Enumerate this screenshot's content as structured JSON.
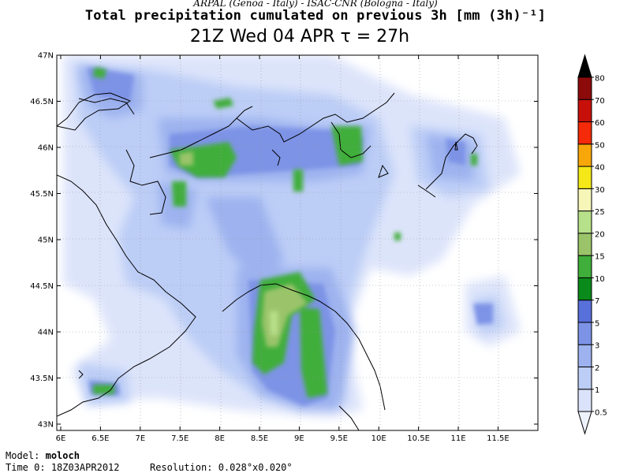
{
  "header": {
    "line1": "ARPAL (Genoa - Italy)  -  ISAC-CNR (Bologna - Italy)",
    "line2": "Total precipitation cumulated on previous 3h [mm (3h)⁻¹]",
    "line3": "21Z Wed 04 APR  τ = 27h"
  },
  "footer": {
    "model_label": "Model:",
    "model_value": "moloch",
    "time_label": "Time 0:",
    "time_value": "18Z03APR2012",
    "resolution_label": "Resolution:",
    "resolution_value": "0.028°x0.020°"
  },
  "map": {
    "lat_labels": [
      "47N",
      "46.5N",
      "46N",
      "45.5N",
      "45N",
      "44.5N",
      "44N",
      "43.5N",
      "43N"
    ],
    "lon_labels": [
      "6E",
      "6.5E",
      "7E",
      "7.5E",
      "8E",
      "8.5E",
      "9E",
      "9.5E",
      "10E",
      "10.5E",
      "11E",
      "11.5E"
    ],
    "background": "#ffffff",
    "line_color": "#000000"
  },
  "colorbar": {
    "labels": [
      "0.5",
      "1",
      "2",
      "3",
      "5",
      "7",
      "10",
      "15",
      "20",
      "25",
      "30",
      "40",
      "50",
      "60",
      "70",
      "80"
    ],
    "colors": [
      "#eef2fc",
      "#dbe3fa",
      "#bccdf6",
      "#9db2ef",
      "#7d93e6",
      "#5870da",
      "#0a8a1a",
      "#3fae3a",
      "#9bc46a",
      "#b7e08a",
      "#f6f6b8",
      "#f4e818",
      "#f8a70a",
      "#f42a08",
      "#c8100a",
      "#8c0a0a",
      "#000000"
    ]
  }
}
